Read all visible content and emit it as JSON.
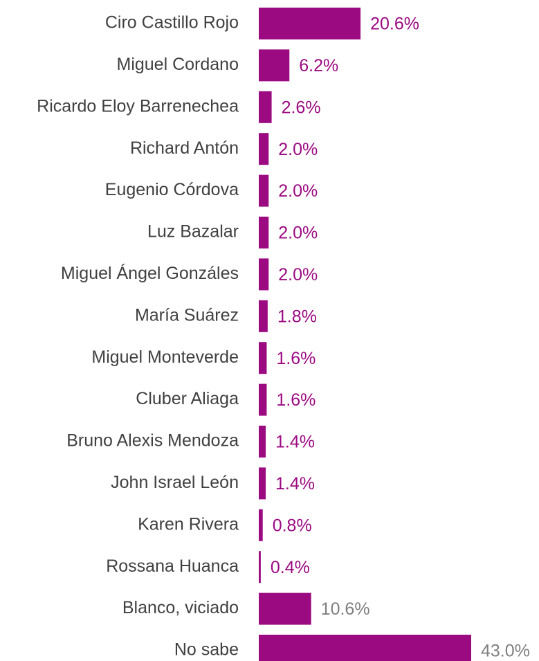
{
  "chart_data": {
    "type": "bar",
    "orientation": "horizontal",
    "categories": [
      "Ciro Castillo Rojo",
      "Miguel Cordano",
      "Ricardo Eloy Barrenechea",
      "Richard Antón",
      "Eugenio Córdova",
      "Luz Bazalar",
      "Miguel Ángel Gonzáles",
      "María Suárez",
      "Miguel Monteverde",
      "Cluber Aliaga",
      "Bruno Alexis Mendoza",
      "John Israel León",
      "Karen Rivera",
      "Rossana Huanca",
      "Blanco, viciado",
      "No sabe"
    ],
    "values": [
      20.6,
      6.2,
      2.6,
      2.0,
      2.0,
      2.0,
      2.0,
      1.8,
      1.6,
      1.6,
      1.4,
      1.4,
      0.8,
      0.4,
      10.6,
      43.0
    ],
    "value_labels": [
      "20.6%",
      "6.2%",
      "2.6%",
      "2.0%",
      "2.0%",
      "2.0%",
      "2.0%",
      "1.8%",
      "1.6%",
      "1.6%",
      "1.4%",
      "1.4%",
      "0.8%",
      "0.4%",
      "10.6%",
      "43.0%"
    ],
    "color": "#9c0a82",
    "label_colors": [
      "#9c0a82",
      "#9c0a82",
      "#9c0a82",
      "#9c0a82",
      "#9c0a82",
      "#9c0a82",
      "#9c0a82",
      "#9c0a82",
      "#9c0a82",
      "#9c0a82",
      "#9c0a82",
      "#9c0a82",
      "#9c0a82",
      "#9c0a82",
      "#7f7f7f",
      "#7f7f7f"
    ]
  }
}
